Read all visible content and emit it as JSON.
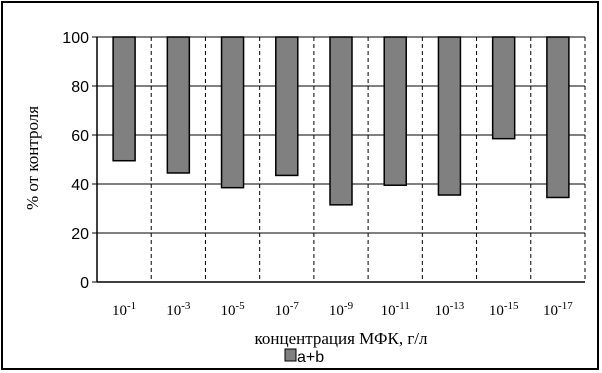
{
  "chart_data": {
    "type": "bar",
    "title": "",
    "categories": [
      {
        "base": "10",
        "exp": "-1"
      },
      {
        "base": "10",
        "exp": "-3"
      },
      {
        "base": "10",
        "exp": "-5"
      },
      {
        "base": "10",
        "exp": "-7"
      },
      {
        "base": "10",
        "exp": "-9"
      },
      {
        "base": "10",
        "exp": "-11"
      },
      {
        "base": "10",
        "exp": "-13"
      },
      {
        "base": "10",
        "exp": "-15"
      },
      {
        "base": "10",
        "exp": "-17"
      }
    ],
    "series": [
      {
        "name": "a+b",
        "bar_bottoms": [
          49.5,
          44.5,
          38.5,
          43.5,
          31.5,
          39.5,
          35.5,
          58.5,
          34.5
        ],
        "bar_tops": [
          100,
          100,
          100,
          100,
          100,
          100,
          100,
          100,
          100
        ],
        "color": "#808080"
      }
    ],
    "xlabel": "концентрация МФК, г/л",
    "ylabel": "% от контроля",
    "ylim": [
      0,
      100
    ],
    "yticks": [
      0,
      20,
      40,
      60,
      80,
      100
    ],
    "grid": "horizontal solid, vertical dashed",
    "legend": "bottom-center"
  }
}
